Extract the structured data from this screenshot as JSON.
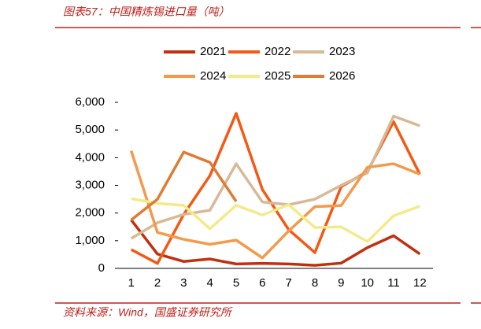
{
  "chart_data": {
    "type": "line",
    "title": "图表57：中国精炼锡进口量（吨）",
    "source": "资料来源：Wind，国盛证券研究所",
    "categories": [
      "1",
      "2",
      "3",
      "4",
      "5",
      "6",
      "7",
      "8",
      "9",
      "10",
      "11",
      "12"
    ],
    "series": [
      {
        "name": "2021",
        "color": "#c0300f",
        "values": [
          1750,
          520,
          250,
          340,
          160,
          180,
          160,
          110,
          190,
          750,
          1180,
          520
        ]
      },
      {
        "name": "2022",
        "color": "#f25a16",
        "values": [
          680,
          180,
          1950,
          3350,
          5600,
          2850,
          1400,
          570,
          2950,
          3500,
          5300,
          3400
        ]
      },
      {
        "name": "2023",
        "color": "#d8b996",
        "values": [
          1080,
          1650,
          1950,
          2100,
          3780,
          2400,
          2300,
          2500,
          3000,
          3450,
          5500,
          5150
        ]
      },
      {
        "name": "2024",
        "color": "#f39a4c",
        "values": [
          4250,
          1300,
          1050,
          870,
          1020,
          380,
          1350,
          2230,
          2270,
          3650,
          3780,
          3400
        ]
      },
      {
        "name": "2025",
        "color": "#f4ea8a",
        "values": [
          2520,
          2350,
          2280,
          1430,
          2280,
          1930,
          2300,
          1480,
          1500,
          970,
          1900,
          2250
        ]
      },
      {
        "name": "2026",
        "color": "#de7b35",
        "values": [
          1750,
          2500,
          4200,
          3830,
          2420,
          null,
          null,
          null,
          null,
          null,
          null,
          null
        ]
      }
    ],
    "ylim": [
      0,
      6000
    ],
    "yticks": [
      0,
      {
        "value": 1000,
        "label": "1,000"
      },
      {
        "value": 2000,
        "label": "2,000"
      },
      {
        "value": 3000,
        "label": "3,000"
      },
      {
        "value": 4000,
        "label": "4,000"
      },
      {
        "value": 5000,
        "label": "5,000"
      },
      {
        "value": 6000,
        "label": "6,000"
      }
    ],
    "grid": false
  }
}
